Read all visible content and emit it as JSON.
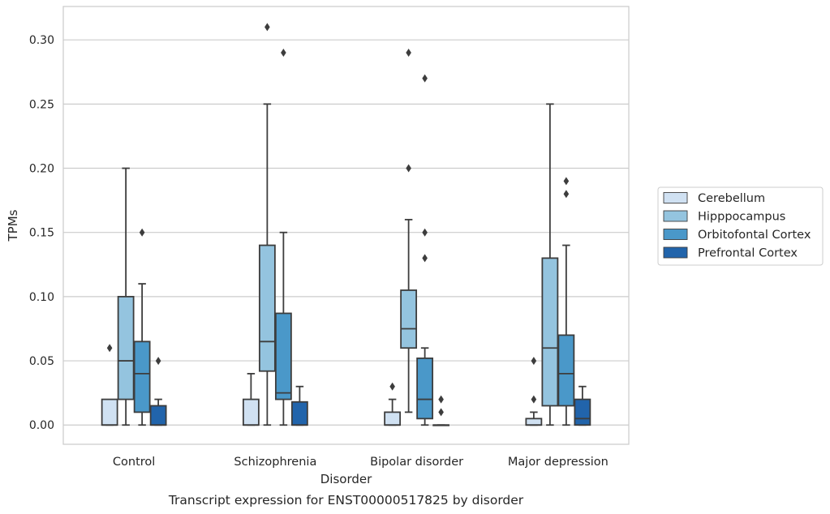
{
  "chart_data": {
    "type": "box",
    "caption": "Transcript expression for ENST00000517825 by disorder",
    "xlabel": "Disorder",
    "ylabel": "TPMs",
    "ylim": [
      -0.015,
      0.326
    ],
    "yticks": [
      0.0,
      0.05,
      0.1,
      0.15,
      0.2,
      0.25,
      0.3
    ],
    "ytick_labels": [
      "0.00",
      "0.05",
      "0.10",
      "0.15",
      "0.20",
      "0.25",
      "0.30"
    ],
    "grid": "horizontal",
    "legend_position": "right",
    "categories": [
      "Control",
      "Schizophrenia",
      "Bipolar disorder",
      "Major depression"
    ],
    "series": [
      {
        "name": "Cerebellum",
        "color": "#d0e1f2",
        "boxes": [
          {
            "q1": 0.0,
            "median": 0.0,
            "q3": 0.02,
            "whisker_low": 0.0,
            "whisker_high": 0.02,
            "outliers": [
              0.06
            ]
          },
          {
            "q1": 0.0,
            "median": 0.0,
            "q3": 0.02,
            "whisker_low": 0.0,
            "whisker_high": 0.04,
            "outliers": []
          },
          {
            "q1": 0.0,
            "median": 0.0,
            "q3": 0.01,
            "whisker_low": 0.0,
            "whisker_high": 0.02,
            "outliers": [
              0.03
            ]
          },
          {
            "q1": 0.0,
            "median": 0.0,
            "q3": 0.005,
            "whisker_low": 0.0,
            "whisker_high": 0.01,
            "outliers": [
              0.02,
              0.05
            ]
          }
        ]
      },
      {
        "name": "Hipppocampus",
        "color": "#94c4df",
        "boxes": [
          {
            "q1": 0.02,
            "median": 0.05,
            "q3": 0.1,
            "whisker_low": 0.0,
            "whisker_high": 0.2,
            "outliers": []
          },
          {
            "q1": 0.042,
            "median": 0.065,
            "q3": 0.14,
            "whisker_low": 0.0,
            "whisker_high": 0.25,
            "outliers": [
              0.31
            ]
          },
          {
            "q1": 0.06,
            "median": 0.075,
            "q3": 0.105,
            "whisker_low": 0.01,
            "whisker_high": 0.16,
            "outliers": [
              0.2,
              0.29
            ]
          },
          {
            "q1": 0.015,
            "median": 0.06,
            "q3": 0.13,
            "whisker_low": 0.0,
            "whisker_high": 0.25,
            "outliers": []
          }
        ]
      },
      {
        "name": "Orbitofontal Cortex",
        "color": "#4a98c9",
        "boxes": [
          {
            "q1": 0.01,
            "median": 0.04,
            "q3": 0.065,
            "whisker_low": 0.0,
            "whisker_high": 0.11,
            "outliers": [
              0.15
            ]
          },
          {
            "q1": 0.02,
            "median": 0.025,
            "q3": 0.087,
            "whisker_low": 0.0,
            "whisker_high": 0.15,
            "outliers": [
              0.29
            ]
          },
          {
            "q1": 0.005,
            "median": 0.02,
            "q3": 0.052,
            "whisker_low": 0.0,
            "whisker_high": 0.06,
            "outliers": [
              0.13,
              0.15,
              0.27
            ]
          },
          {
            "q1": 0.015,
            "median": 0.04,
            "q3": 0.07,
            "whisker_low": 0.0,
            "whisker_high": 0.14,
            "outliers": [
              0.18,
              0.19
            ]
          }
        ]
      },
      {
        "name": "Prefrontal Cortex",
        "color": "#2164ab",
        "boxes": [
          {
            "q1": 0.0,
            "median": 0.0,
            "q3": 0.015,
            "whisker_low": 0.0,
            "whisker_high": 0.02,
            "outliers": [
              0.05
            ]
          },
          {
            "q1": 0.0,
            "median": 0.0,
            "q3": 0.018,
            "whisker_low": 0.0,
            "whisker_high": 0.03,
            "outliers": []
          },
          {
            "q1": 0.0,
            "median": 0.0,
            "q3": 0.0,
            "whisker_low": 0.0,
            "whisker_high": 0.0,
            "outliers": [
              0.01,
              0.02
            ]
          },
          {
            "q1": 0.0,
            "median": 0.005,
            "q3": 0.02,
            "whisker_low": 0.0,
            "whisker_high": 0.03,
            "outliers": []
          }
        ]
      }
    ]
  }
}
